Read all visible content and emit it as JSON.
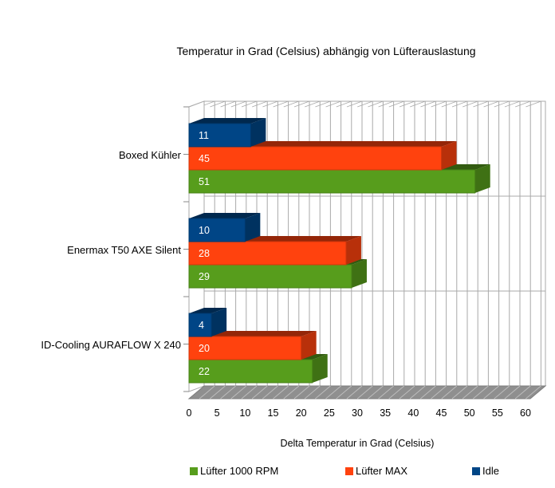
{
  "chart_data": {
    "type": "bar",
    "orientation": "horizontal",
    "style": "3d",
    "title": "Temperatur in Grad (Celsius) abhängig von Lüfterauslastung",
    "xlabel": "Delta Temperatur in Grad (Celsius)",
    "categories": [
      "Boxed Kühler",
      "Enermax T50 AXE Silent",
      "ID-Cooling AURAFLOW X 240"
    ],
    "series": [
      {
        "name": "Lüfter 1000 RPM",
        "color": "#579D1C",
        "values": [
          51,
          29,
          22
        ]
      },
      {
        "name": "Lüfter MAX",
        "color": "#FF420E",
        "values": [
          45,
          28,
          20
        ]
      },
      {
        "name": "Idle",
        "color": "#004586",
        "values": [
          11,
          10,
          4
        ]
      }
    ],
    "bar_order_top_to_bottom": [
      "Idle",
      "Lüfter MAX",
      "Lüfter 1000 RPM"
    ],
    "data_labels": true,
    "data_label_color": "#ffffff",
    "x_ticks": [
      0,
      5,
      10,
      15,
      20,
      25,
      30,
      35,
      40,
      45,
      50,
      55,
      60
    ],
    "xlim": [
      0,
      61
    ],
    "grid": true,
    "grid_color": "#a9a9a9",
    "wall_color": "#ffffff",
    "floor_color": "#8f8f8f",
    "floor_line_color": "#bdbdbd",
    "legend_position": "bottom"
  }
}
